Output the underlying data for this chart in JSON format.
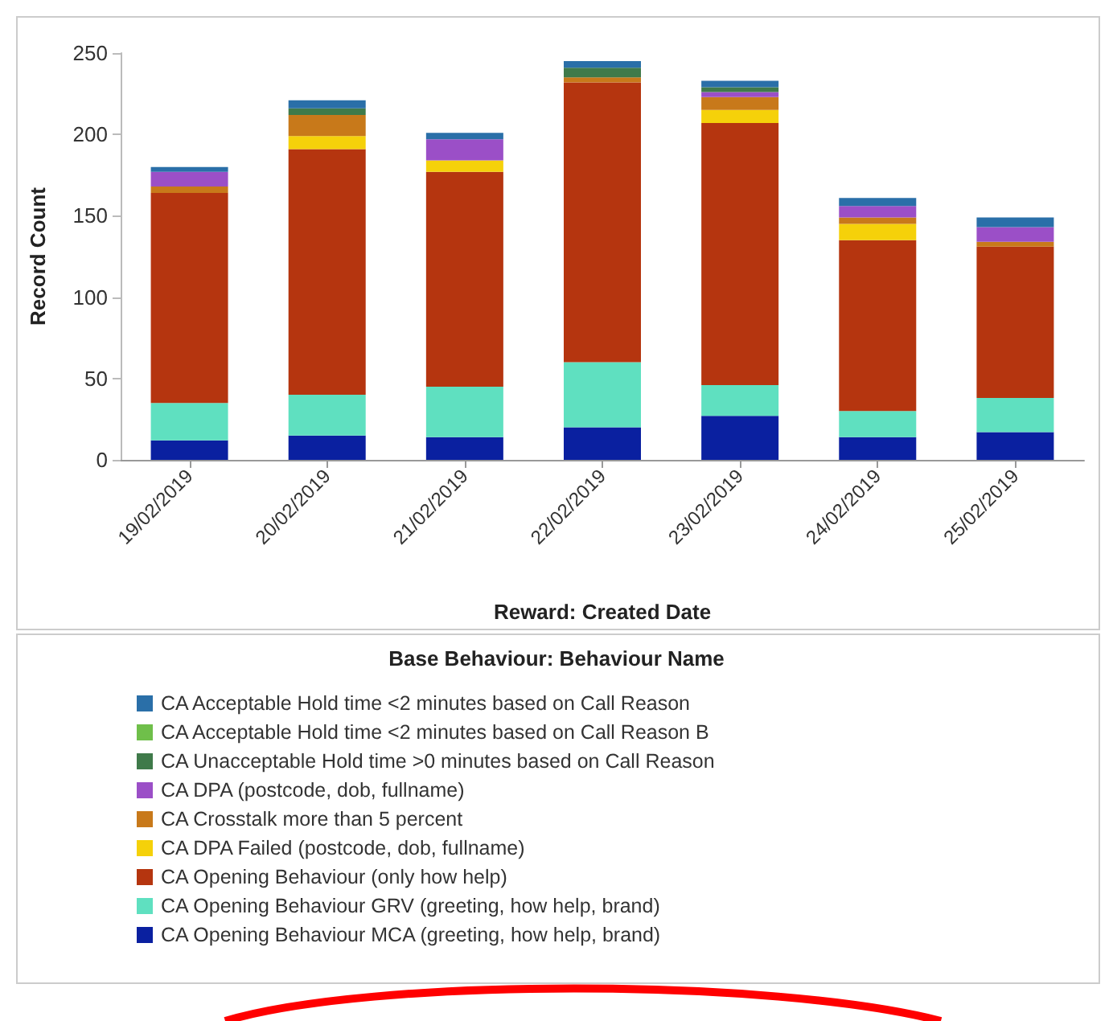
{
  "chart_data": {
    "type": "bar",
    "stacked": true,
    "xlabel": "Reward: Created Date",
    "ylabel": "Record Count",
    "legend_title": "Base Behaviour: Behaviour Name",
    "categories": [
      "19/02/2019",
      "20/02/2019",
      "21/02/2019",
      "22/02/2019",
      "23/02/2019",
      "24/02/2019",
      "25/02/2019"
    ],
    "series": [
      {
        "name": "CA Opening Behaviour MCA (greeting, how help, brand)",
        "color": "#0a20a0",
        "values": [
          12,
          15,
          14,
          20,
          27,
          14,
          17
        ]
      },
      {
        "name": "CA Opening Behaviour GRV (greeting, how help, brand)",
        "color": "#5fe0c0",
        "values": [
          23,
          25,
          31,
          40,
          19,
          16,
          21
        ]
      },
      {
        "name": "CA Opening Behaviour (only how help)",
        "color": "#b5350f",
        "values": [
          129,
          151,
          132,
          172,
          161,
          105,
          93
        ]
      },
      {
        "name": "CA DPA Failed (postcode, dob, fullname)",
        "color": "#f5d10a",
        "values": [
          null,
          8,
          7,
          null,
          8,
          10,
          null
        ]
      },
      {
        "name": "CA Crosstalk more than 5 percent",
        "color": "#c8791a",
        "values": [
          4,
          13,
          null,
          3,
          8,
          4,
          3
        ]
      },
      {
        "name": "CA DPA (postcode, dob, fullname)",
        "color": "#9b4fc7",
        "values": [
          9,
          null,
          13,
          null,
          3,
          7,
          9
        ]
      },
      {
        "name": "CA Unacceptable Hold time >0 minutes based on Call Reason",
        "color": "#3f7a4a",
        "values": [
          null,
          4,
          null,
          6,
          3,
          null,
          null
        ]
      },
      {
        "name": "CA Acceptable Hold time <2 minutes based on Call Reason B",
        "color": "#6fbf4a",
        "values": [
          null,
          null,
          null,
          null,
          null,
          null,
          null
        ]
      },
      {
        "name": "CA Acceptable Hold time <2 minutes based on Call Reason",
        "color": "#2a6fa8",
        "values": [
          3,
          5,
          4,
          4,
          4,
          5,
          6
        ]
      }
    ],
    "ylim": [
      0,
      250
    ],
    "yticks": [
      0,
      50,
      100,
      150,
      200,
      250
    ],
    "grid": false,
    "legend": "bottom"
  }
}
